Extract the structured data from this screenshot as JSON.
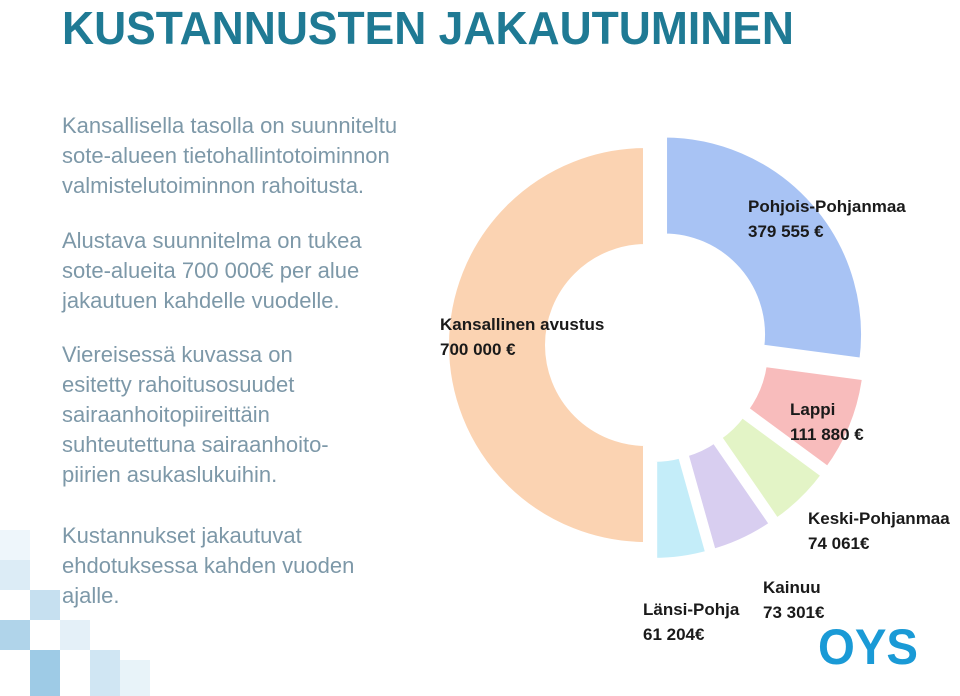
{
  "title": "KUSTANNUSTEN JAKAUTUMINEN",
  "paragraphs": [
    [
      "Kansallisella tasolla on suunniteltu",
      "sote-alueen tietohallintotoiminnon",
      "valmistelutoiminnon rahoitusta."
    ],
    [
      "Alustava suunnitelma on tukea",
      "sote-alueita 700 000€ per alue",
      "jakautuen kahdelle vuodelle."
    ],
    [
      "Viereisessä kuvassa on",
      "esitetty rahoitusosuudet",
      "sairaanhoitopiireittäin",
      "suhteutettuna sairaanhoito-",
      "piirien asukaslukuihin."
    ],
    [
      "Kustannukset jakautuvat",
      "ehdotuksessa kahden vuoden",
      "ajalle."
    ]
  ],
  "logo": "OYS",
  "chart_data": {
    "type": "donut",
    "categories": [
      "Kansallinen avustus",
      "Pohjois-Pohjanmaa",
      "Lappi",
      "Keski-Pohjanmaa",
      "Kainuu",
      "Länsi-Pohja"
    ],
    "values": [
      700000,
      379555,
      111880,
      74061,
      73301,
      61204
    ],
    "value_labels": [
      "700 000 €",
      "379 555 €",
      "111 880 €",
      "74 061€",
      "73 301€",
      "61 204€"
    ],
    "colors": [
      "#fbd3b2",
      "#a8c3f4",
      "#f8bcbc",
      "#e3f4c6",
      "#d8cef0",
      "#c4edf9"
    ]
  }
}
